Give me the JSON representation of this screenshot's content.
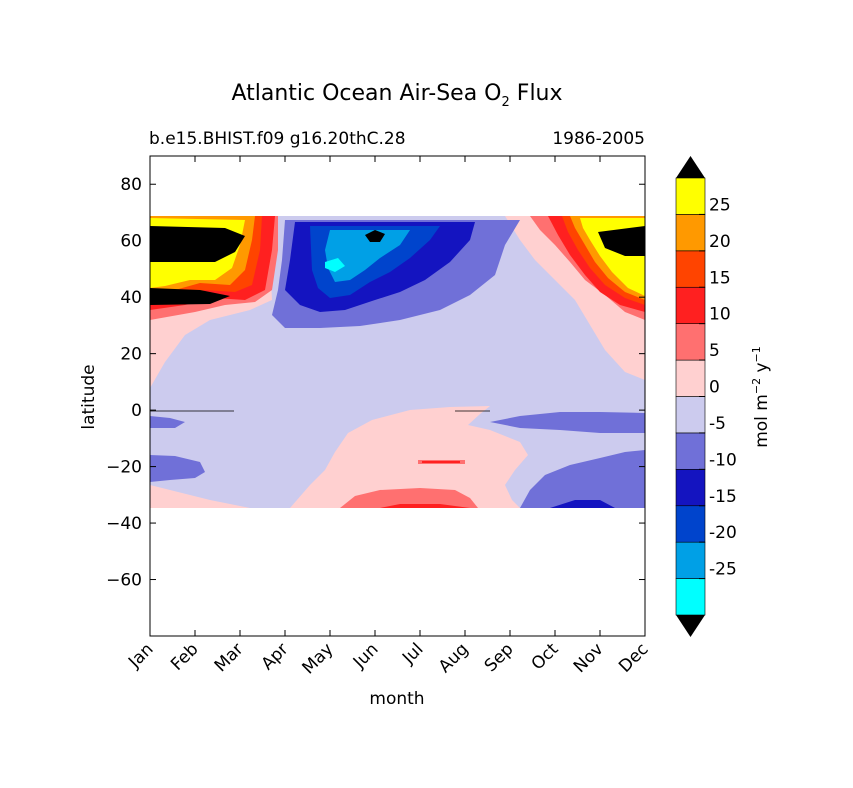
{
  "chart_data": {
    "type": "heatmap",
    "subtype": "filled-contour",
    "title_main": "Atlantic Ocean Air-Sea O",
    "title_sub": "2",
    "title_end": " Flux",
    "subtitle_left": "b.e15.BHIST.f09 g16.20thC.28",
    "subtitle_right": "1986-2005",
    "xlabel": "month",
    "ylabel": "latitude",
    "x_categories": [
      "Jan",
      "Feb",
      "Mar",
      "Apr",
      "May",
      "Jun",
      "Jul",
      "Aug",
      "Sep",
      "Oct",
      "Nov",
      "Dec"
    ],
    "xlim": [
      0,
      11
    ],
    "ylim": [
      -80,
      90
    ],
    "y_ticks": [
      80,
      60,
      40,
      20,
      0,
      -20,
      -40,
      -60
    ],
    "y_tick_labels": [
      "80",
      "60",
      "40",
      "20",
      "0",
      "−20",
      "−40",
      "−60"
    ],
    "data_lat_range": [
      -34,
      69
    ],
    "colorbar": {
      "label": "mol m",
      "label_exp1": "−2",
      "label_mid": " y",
      "label_exp2": "−1",
      "levels": [
        -30,
        -25,
        -20,
        -15,
        -10,
        -5,
        0,
        5,
        10,
        15,
        20,
        25,
        30
      ],
      "tick_labels": [
        "-25",
        "-20",
        "-15",
        "-10",
        "-5",
        "0",
        "5",
        "10",
        "15",
        "20",
        "25"
      ],
      "colors": [
        "#00ffff",
        "#00a0e6",
        "#0044cc",
        "#1414c0",
        "#7070d8",
        "#cccbee",
        "#ffd0d0",
        "#ff7070",
        "#ff2020",
        "#ff4400",
        "#ff9900",
        "#ffff00"
      ],
      "extend_low_color": "#000000",
      "extend_high_color": "#000000"
    },
    "regions": [
      {
        "band": "60N-69N",
        "months": "Nov-Mar",
        "value": ">30"
      },
      {
        "band": "40N-45N",
        "months": "Nov-Feb",
        "value": ">30"
      },
      {
        "band": "40N-69N",
        "months": "Apr-Aug",
        "value": "-10 to -30"
      },
      {
        "band": "30N-69N",
        "months": "Apr-Sep",
        "value": "-5 to -10"
      },
      {
        "band": "10N-30N",
        "months": "all",
        "value": "0 to -5"
      },
      {
        "band": "0-34S",
        "months": "Jun-Sep",
        "value": "0 to 5"
      },
      {
        "band": "20S-34S",
        "months": "Oct-Jan",
        "value": "-5 to -10"
      }
    ]
  }
}
